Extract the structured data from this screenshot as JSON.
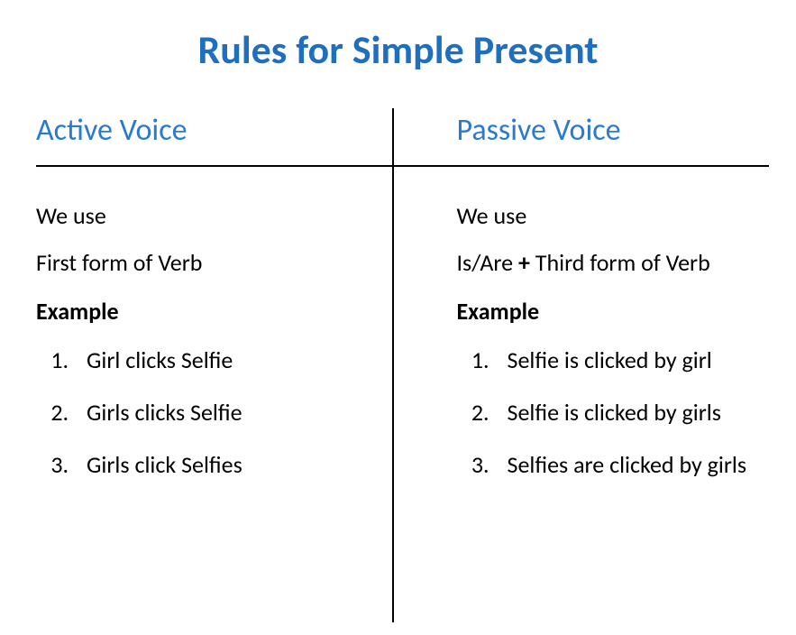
{
  "title": {
    "text": "Rules for Simple Present",
    "color": "#1f6fc1",
    "fontsize": 44
  },
  "header_fontsize": 34,
  "body_fontsize": 26,
  "text_color": "#000000",
  "background_color": "#ffffff",
  "divider_color": "#000000",
  "left": {
    "header": "Active Voice",
    "header_color": "#2a7ad1",
    "line1": "We use",
    "line2": "First form of Verb",
    "example_label": "Example",
    "examples": [
      "Girl clicks Selfie",
      "Girls clicks Selfie",
      "Girls click Selfies"
    ]
  },
  "right": {
    "header": "Passive Voice",
    "header_color": "#2a7ad1",
    "line1": "We use",
    "line2_prefix": "Is/Are ",
    "line2_bold": "+",
    "line2_suffix": " Third form of Verb",
    "example_label": "Example",
    "examples": [
      "Selfie is clicked by girl",
      "Selfie is clicked by girls",
      "Selfies are clicked by girls"
    ]
  }
}
